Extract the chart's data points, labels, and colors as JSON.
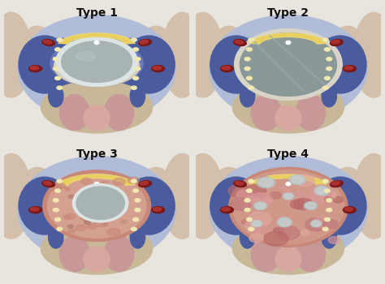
{
  "types": [
    "Type 1",
    "Type 2",
    "Type 3",
    "Type 4"
  ],
  "bg_color": "#e8e4de",
  "panel_border": "#c8c4bc",
  "skin_light": "#d4bfaa",
  "skin_mid": "#c8aa90",
  "blue_dark": "#4a5c9e",
  "blue_mid": "#6878b8",
  "blue_light": "#8898c8",
  "blue_pale": "#b0bcd8",
  "beige_bone": "#d8ccb8",
  "pink_lower": "#c89898",
  "pink_lower2": "#d8a8a0",
  "tan_lower": "#c8b898",
  "yellow_fat": "#e8d060",
  "yellow_fat2": "#f0dc80",
  "gray_cyst": "#a8b4b4",
  "gray_cyst2": "#b8c4c4",
  "dark_gray_cyst": "#8a9898",
  "white_ring": "#dde4e4",
  "cream_ring": "#d8d4c8",
  "red_v1": "#7a1818",
  "red_v2": "#922020",
  "red_v3": "#aa3030",
  "cream_dot": "#f0e8b0",
  "pink_tissue3": "#d4a090",
  "pink_tissue3b": "#c88878",
  "pink_tissue4": "#d09888",
  "pink_tissue4b": "#c88878",
  "label_fontsize": 10,
  "label_color": "#111111"
}
